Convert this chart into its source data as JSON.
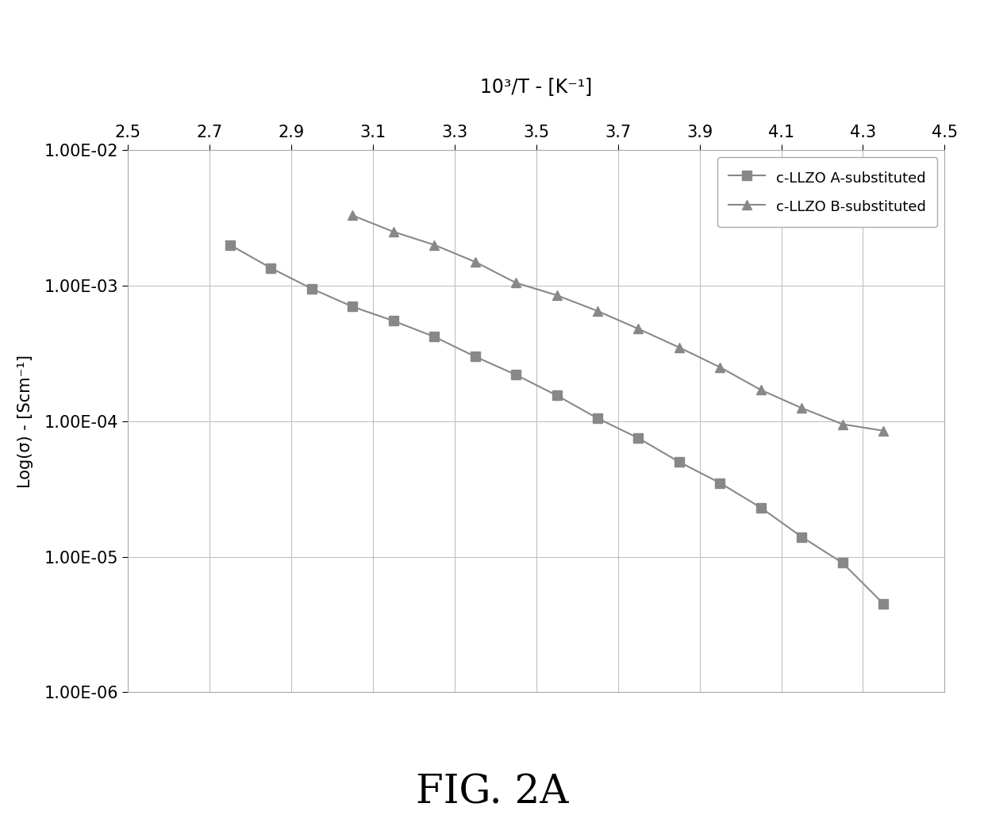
{
  "title_top": "10³/T - [K⁻¹]",
  "ylabel": "Log(σ) - [Scm⁻¹]",
  "fig_label": "FIG. 2A",
  "xlim": [
    2.5,
    4.5
  ],
  "ylim_log": [
    1e-06,
    0.01
  ],
  "xticks": [
    2.5,
    2.7,
    2.9,
    3.1,
    3.3,
    3.5,
    3.7,
    3.9,
    4.1,
    4.3,
    4.5
  ],
  "xtick_labels": [
    "2.5",
    "2.7",
    "2.9",
    "3.1",
    "3.3",
    "3.5",
    "3.7",
    "3.9",
    "4.1",
    "4.3",
    "4.5"
  ],
  "yticks": [
    1e-06,
    1e-05,
    0.0001,
    0.001,
    0.01
  ],
  "ytick_labels": [
    "1.00E-06",
    "1.00E-05",
    "1.00E-04",
    "1.00E-03",
    "1.00E-02"
  ],
  "series_A": {
    "label": "c-LLZO A-substituted",
    "x": [
      2.75,
      2.85,
      2.95,
      3.05,
      3.15,
      3.25,
      3.35,
      3.45,
      3.55,
      3.65,
      3.75,
      3.85,
      3.95,
      4.05,
      4.15,
      4.25,
      4.35
    ],
    "y": [
      0.002,
      0.00135,
      0.00095,
      0.0007,
      0.00055,
      0.00042,
      0.0003,
      0.00022,
      0.000155,
      0.000105,
      7.5e-05,
      5e-05,
      3.5e-05,
      2.3e-05,
      1.4e-05,
      9e-06,
      4.5e-06
    ],
    "color": "#888888",
    "marker": "s",
    "markersize": 8,
    "linewidth": 1.5
  },
  "series_B": {
    "label": "c-LLZO B-substituted",
    "x": [
      3.05,
      3.15,
      3.25,
      3.35,
      3.45,
      3.55,
      3.65,
      3.75,
      3.85,
      3.95,
      4.05,
      4.15,
      4.25,
      4.35
    ],
    "y": [
      0.0033,
      0.0025,
      0.002,
      0.0015,
      0.00105,
      0.00085,
      0.00065,
      0.00048,
      0.00035,
      0.00025,
      0.00017,
      0.000125,
      9.5e-05,
      8.5e-05
    ],
    "color": "#888888",
    "marker": "^",
    "markersize": 9,
    "linewidth": 1.5
  },
  "background_color": "#ffffff",
  "plot_area_color": "#ffffff",
  "grid_color": "#c0c0c0",
  "legend_fontsize": 13,
  "tick_fontsize": 15,
  "label_fontsize": 15,
  "title_fontsize": 17,
  "figlabel_fontsize": 36
}
